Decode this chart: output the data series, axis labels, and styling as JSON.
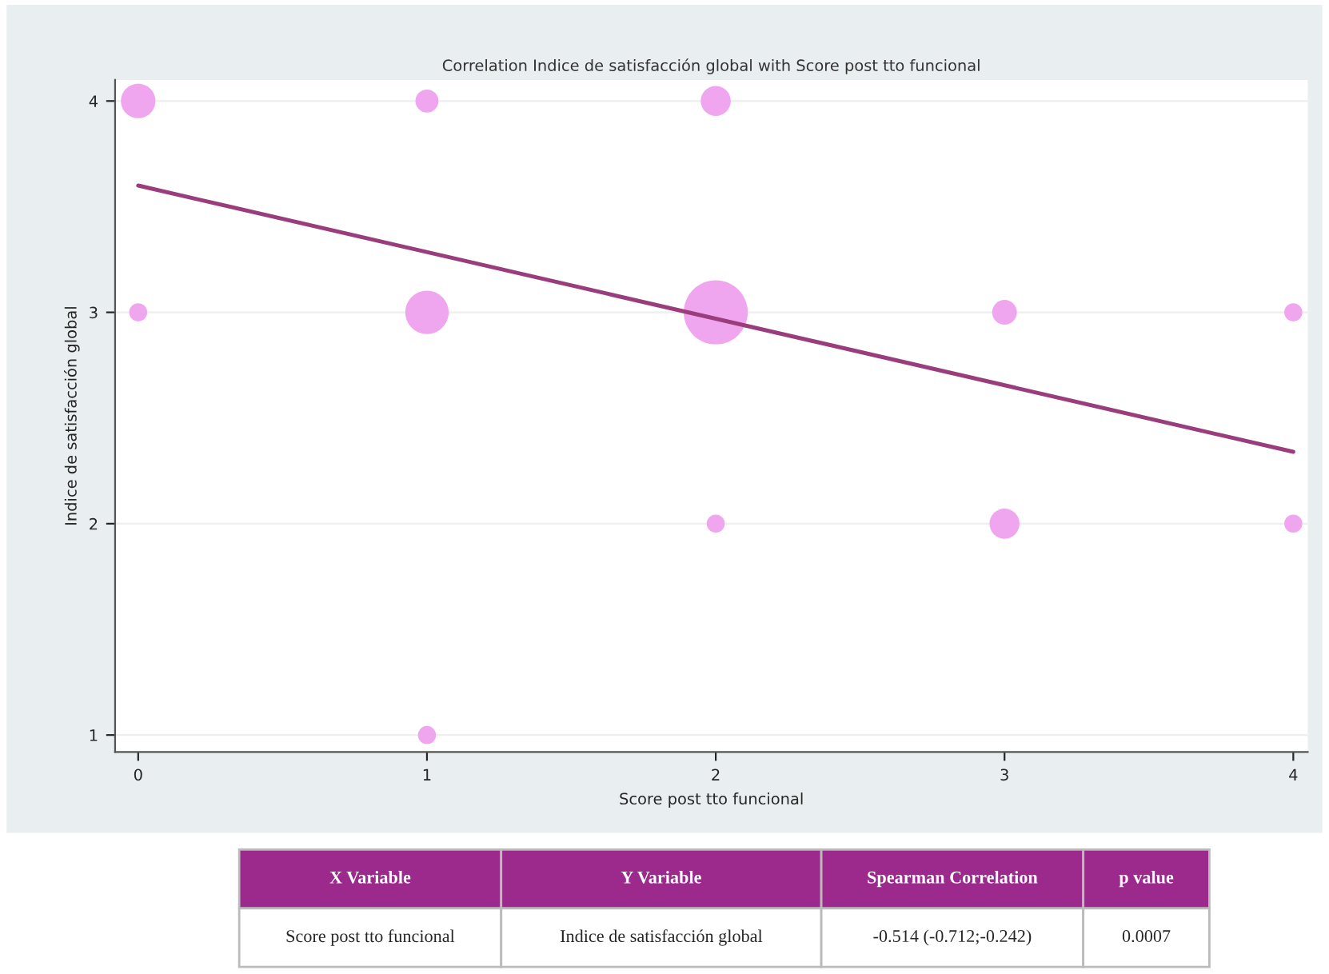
{
  "chart_data": {
    "type": "bubble",
    "title": "Correlation Indice de satisfacción global with Score post tto funcional",
    "xlabel": "Score post tto funcional",
    "ylabel": "Indice de satisfacción global",
    "series": [
      {
        "marker": "circle",
        "color": "#f0a6ef",
        "x": [
          0,
          1,
          2,
          0,
          1,
          2,
          3,
          4,
          2,
          3,
          4,
          1
        ],
        "values": [
          4,
          4,
          4,
          3,
          3,
          3,
          3,
          3,
          2,
          2,
          2,
          1
        ],
        "sizes": [
          0.29,
          0.13,
          0.22,
          0.08,
          0.46,
          1,
          0.15,
          0.08,
          0.08,
          0.22,
          0.08,
          0.08
        ]
      },
      {
        "type": "line",
        "color": "#9a3d7c",
        "x": [
          0,
          4
        ],
        "values": [
          3.6,
          2.34
        ]
      }
    ],
    "xlim": [
      -0.08,
      4.05
    ],
    "ylim": [
      0.92,
      4.1
    ],
    "xticks": [
      0,
      1,
      2,
      3,
      4
    ],
    "yticks": [
      1,
      2,
      3,
      4
    ],
    "grid": "y",
    "line_style": "solid",
    "annotations": [
      "X Variable",
      "Y Variable",
      "Spearman Correlation",
      "p value",
      "Score post tto funcional",
      "Indice de satisfacción global",
      "-0.514 (-0.712;-0.242)",
      "0.0007"
    ]
  }
}
